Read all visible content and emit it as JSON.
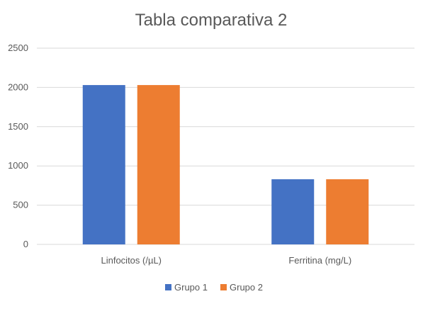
{
  "chart_data": {
    "type": "bar",
    "title": "Tabla comparativa 2",
    "categories": [
      "Linfocitos (/µL)",
      "Ferritina (mg/L)"
    ],
    "series": [
      {
        "name": "Grupo 1",
        "values": [
          2030,
          830
        ],
        "color": "#4472C4"
      },
      {
        "name": "Grupo 2",
        "values": [
          2030,
          830
        ],
        "color": "#ED7D31"
      }
    ],
    "yticks": [
      "0",
      "500",
      "1000",
      "1500",
      "2000",
      "2500"
    ],
    "ylim": [
      0,
      2500
    ],
    "grid": true,
    "legend_position": "bottom"
  }
}
